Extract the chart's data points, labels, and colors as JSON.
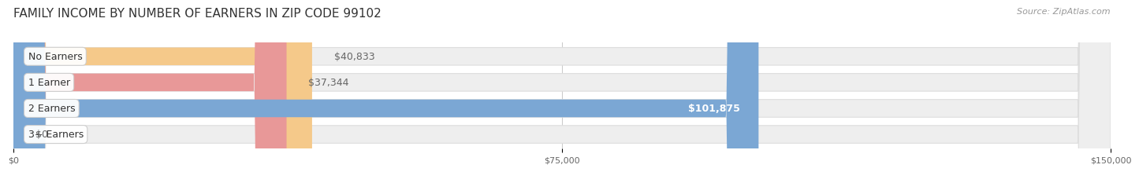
{
  "title": "FAMILY INCOME BY NUMBER OF EARNERS IN ZIP CODE 99102",
  "source": "Source: ZipAtlas.com",
  "categories": [
    "No Earners",
    "1 Earner",
    "2 Earners",
    "3+ Earners"
  ],
  "values": [
    40833,
    37344,
    101875,
    0
  ],
  "bar_colors": [
    "#F5C98A",
    "#E89898",
    "#7BA7D4",
    "#C5B3D5"
  ],
  "label_colors": [
    "#666666",
    "#666666",
    "#ffffff",
    "#666666"
  ],
  "bar_bg_color": "#EEEEEE",
  "background_color": "#ffffff",
  "xlim": [
    0,
    150000
  ],
  "xticks": [
    0,
    75000,
    150000
  ],
  "xtick_labels": [
    "$0",
    "$75,000",
    "$150,000"
  ],
  "title_fontsize": 11,
  "source_fontsize": 8,
  "value_fontsize": 9,
  "category_fontsize": 9
}
